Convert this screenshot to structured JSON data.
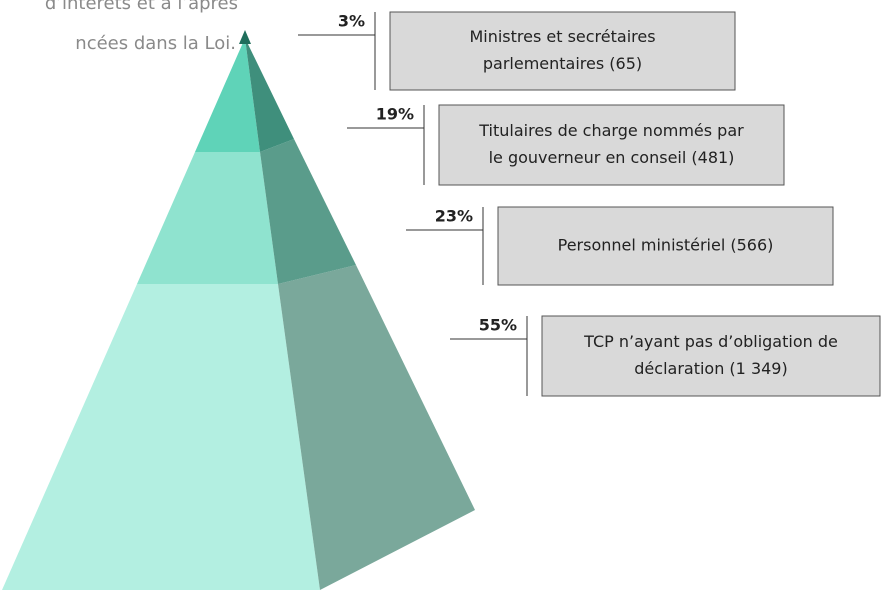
{
  "intro": {
    "lines": [
      "d’intérêts et à l’après",
      "ncées dans la Loi."
    ]
  },
  "levels": [
    {
      "percent": "3%",
      "label": [
        "Ministres et secrétaires",
        "parlementaires (65)"
      ]
    },
    {
      "percent": "19%",
      "label": [
        "Titulaires de charge nommés par",
        "le gouverneur en conseil (481)"
      ]
    },
    {
      "percent": "23%",
      "label": [
        "Personnel ministériel (566)"
      ]
    },
    {
      "percent": "55%",
      "label": [
        "TCP n’ayant pas d’obligation de",
        "déclaration (1 349)"
      ]
    }
  ]
}
